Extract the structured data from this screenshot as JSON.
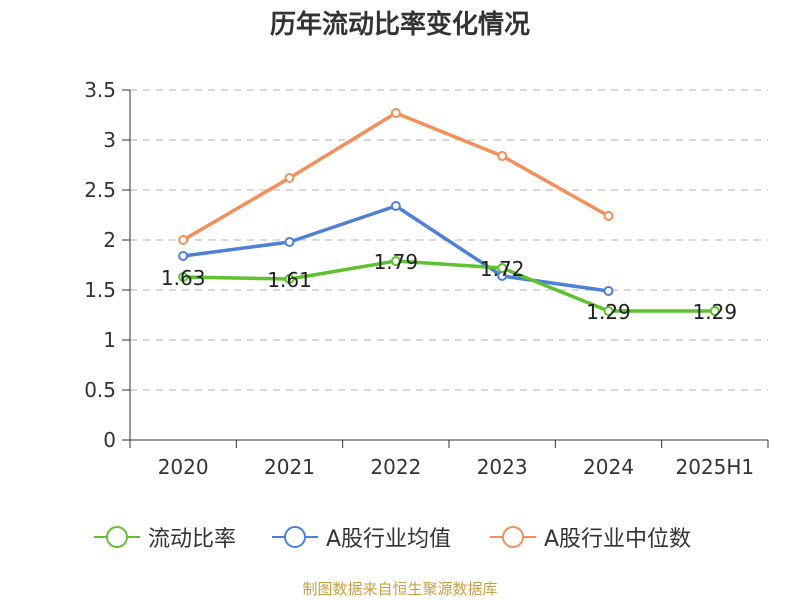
{
  "title": "历年流动比率变化情况",
  "source": "制图数据来自恒生聚源数据库",
  "chart_data": {
    "type": "line",
    "title": "历年流动比率变化情况",
    "categories": [
      "2020",
      "2021",
      "2022",
      "2023",
      "2024",
      "2025H1"
    ],
    "ylim": [
      0,
      3.5
    ],
    "yticks": [
      "0",
      "0.5",
      "1",
      "1.5",
      "2",
      "2.5",
      "3",
      "3.5"
    ],
    "grid": true,
    "legend_position": "bottom",
    "series": [
      {
        "name": "流动比率",
        "color": "#5ec130",
        "values": [
          1.63,
          1.61,
          1.79,
          1.72,
          1.29,
          1.29
        ],
        "labels": [
          "1.63",
          "1.61",
          "1.79",
          "1.72",
          "1.29",
          "1.29"
        ]
      },
      {
        "name": "A股行业均值",
        "color": "#4e80d8",
        "values": [
          1.84,
          1.98,
          2.34,
          1.64,
          1.49,
          null
        ],
        "labels": []
      },
      {
        "name": "A股行业中位数",
        "color": "#f28f5a",
        "values": [
          2.0,
          2.62,
          3.27,
          2.84,
          2.24,
          null
        ],
        "labels": []
      }
    ]
  }
}
